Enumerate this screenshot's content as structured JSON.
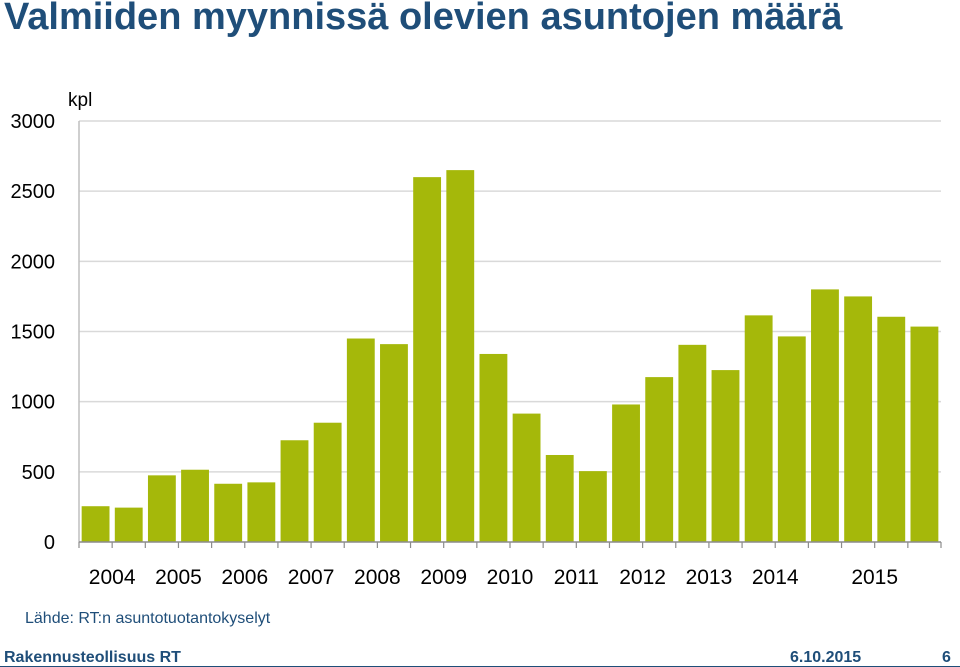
{
  "title": "Valmiiden myynnissä olevien asuntojen määrä",
  "source": "Lähde: RT:n asuntotuotantokyselyt",
  "footer": {
    "org": "Rakennusteollisuus RT",
    "date": "6.10.2015",
    "page": "6"
  },
  "colors": {
    "bar": "#a5b80a",
    "grid": "#d9d9d9",
    "text": "#000000",
    "title": "#1f4e79"
  },
  "chart_data": {
    "type": "bar",
    "ylabel": "kpl",
    "ylim": [
      0,
      3000
    ],
    "yticks": [
      0,
      500,
      1000,
      1500,
      2000,
      2500,
      3000
    ],
    "grid": true,
    "year_labels": [
      {
        "label": "2004",
        "start": 0,
        "span": 2
      },
      {
        "label": "2005",
        "start": 2,
        "span": 2
      },
      {
        "label": "2006",
        "start": 4,
        "span": 2
      },
      {
        "label": "2007",
        "start": 6,
        "span": 2
      },
      {
        "label": "2008",
        "start": 8,
        "span": 2
      },
      {
        "label": "2009",
        "start": 10,
        "span": 2
      },
      {
        "label": "2010",
        "start": 12,
        "span": 2
      },
      {
        "label": "2011",
        "start": 14,
        "span": 2
      },
      {
        "label": "2012",
        "start": 16,
        "span": 2
      },
      {
        "label": "2013",
        "start": 18,
        "span": 2
      },
      {
        "label": "2014",
        "start": 20,
        "span": 2
      },
      {
        "label": "2015",
        "start": 22,
        "span": 4
      }
    ],
    "values": [
      255,
      245,
      475,
      515,
      415,
      425,
      725,
      850,
      1450,
      1410,
      2600,
      2650,
      1340,
      915,
      620,
      505,
      980,
      1175,
      1405,
      1225,
      1615,
      1465,
      1800,
      1750,
      1605,
      1535
    ]
  }
}
